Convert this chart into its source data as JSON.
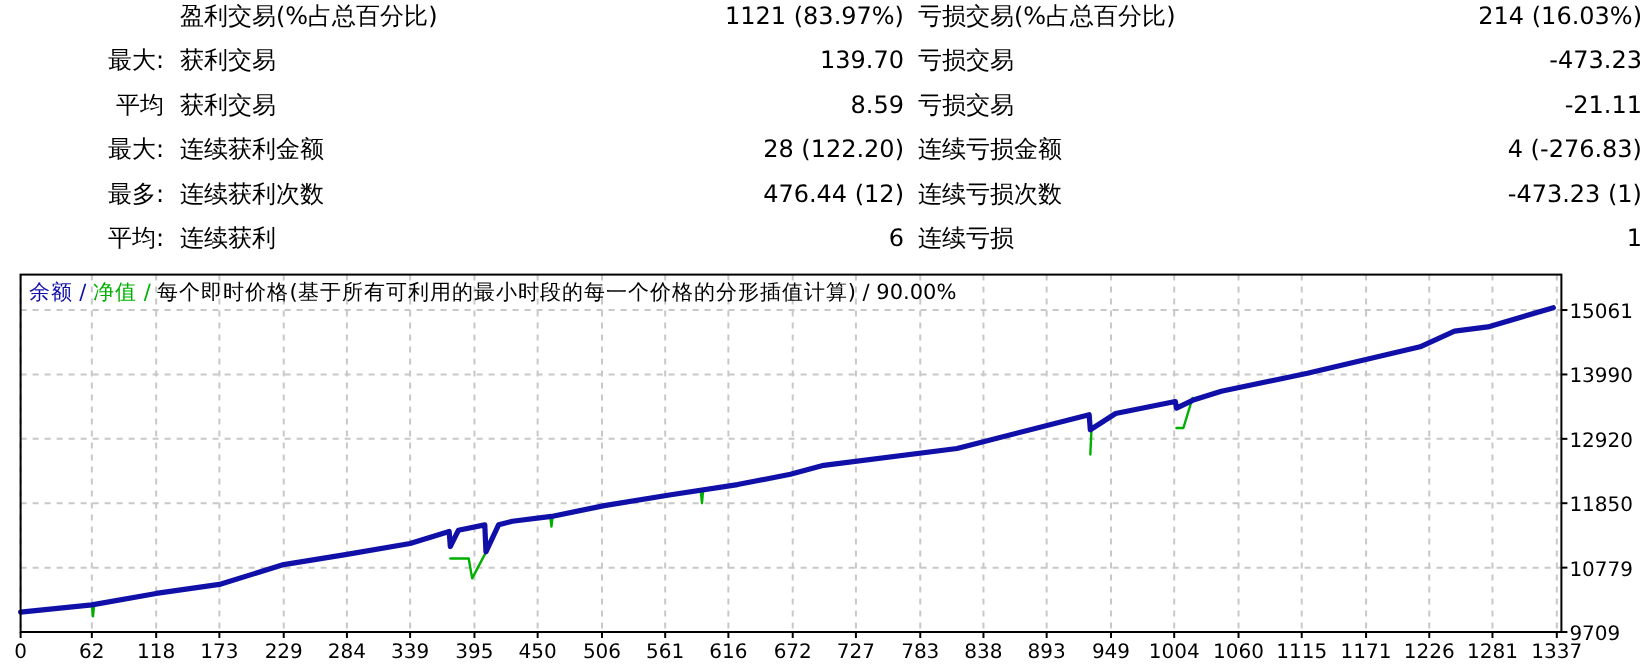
{
  "chart_data": [
    {
      "type": "other",
      "annotations": [
        "盈利交易(%占总百分比)",
        "1121 (83.97%)",
        "亏损交易(%占总百分比)",
        "214 (16.03%)",
        "最大: 获利交易",
        "139.70",
        "亏损交易",
        "-473.23",
        "平均 获利交易",
        "8.59",
        "亏损交易",
        "-21.11",
        "最大: 连续获利金额",
        "28 (122.20)",
        "连续亏损金额",
        "4 (-276.83)",
        "最多: 连续获利次数",
        "476.44 (12)",
        "连续亏损次数",
        "-473.23 (1)",
        "平均: 连续获利",
        "6",
        "连续亏损",
        "1"
      ]
    },
    {
      "type": "line",
      "title": "每个即时价格(基于所有可利用的最小时段的每一个价格的分形插值计算) / 90.00%",
      "legend": "top left",
      "grid": true,
      "xlim": [
        0,
        1341
      ],
      "ylim": [
        9709,
        15650
      ],
      "xticks": [
        0,
        62,
        118,
        173,
        229,
        284,
        339,
        395,
        450,
        506,
        561,
        616,
        672,
        727,
        783,
        838,
        893,
        949,
        1004,
        1060,
        1115,
        1171,
        1226,
        1281,
        1337
      ],
      "yticks": [
        9709,
        10779,
        11850,
        12920,
        13990,
        15061
      ],
      "series": [
        {
          "name": "净值 /",
          "color": "#00b000",
          "x": [
            62,
            63,
            64,
            null,
            null,
            374,
            390,
            393,
            404,
            405,
            null,
            461,
            462,
            463,
            null,
            592,
            593,
            594,
            null,
            null,
            931,
            932,
            null,
            null,
            1006,
            1012,
            1020
          ],
          "values": [
            10160,
            9970,
            10160,
            null,
            null,
            10930,
            10930,
            10600,
            11000,
            11040,
            null,
            11630,
            11460,
            11630,
            null,
            12050,
            11850,
            12060,
            null,
            null,
            12660,
            13070,
            null,
            null,
            13100,
            13100,
            13600
          ]
        },
        {
          "name": "余额 /",
          "color": "#1010a8",
          "x": [
            0,
            62,
            118,
            173,
            229,
            284,
            339,
            373,
            374,
            381,
            404,
            405,
            416,
            428,
            462,
            508,
            566,
            624,
            670,
            699,
            815,
            930,
            931,
            953,
            1005,
            1006,
            1020,
            1045,
            1120,
            1218,
            1248,
            1277,
            1334
          ],
          "values": [
            10040,
            10160,
            10350,
            10500,
            10830,
            11000,
            11180,
            11380,
            11130,
            11400,
            11490,
            11040,
            11490,
            11550,
            11630,
            11810,
            11990,
            12160,
            12330,
            12480,
            12760,
            13320,
            13070,
            13340,
            13540,
            13430,
            13560,
            13710,
            14010,
            14450,
            14710,
            14780,
            15100
          ]
        }
      ]
    }
  ]
}
